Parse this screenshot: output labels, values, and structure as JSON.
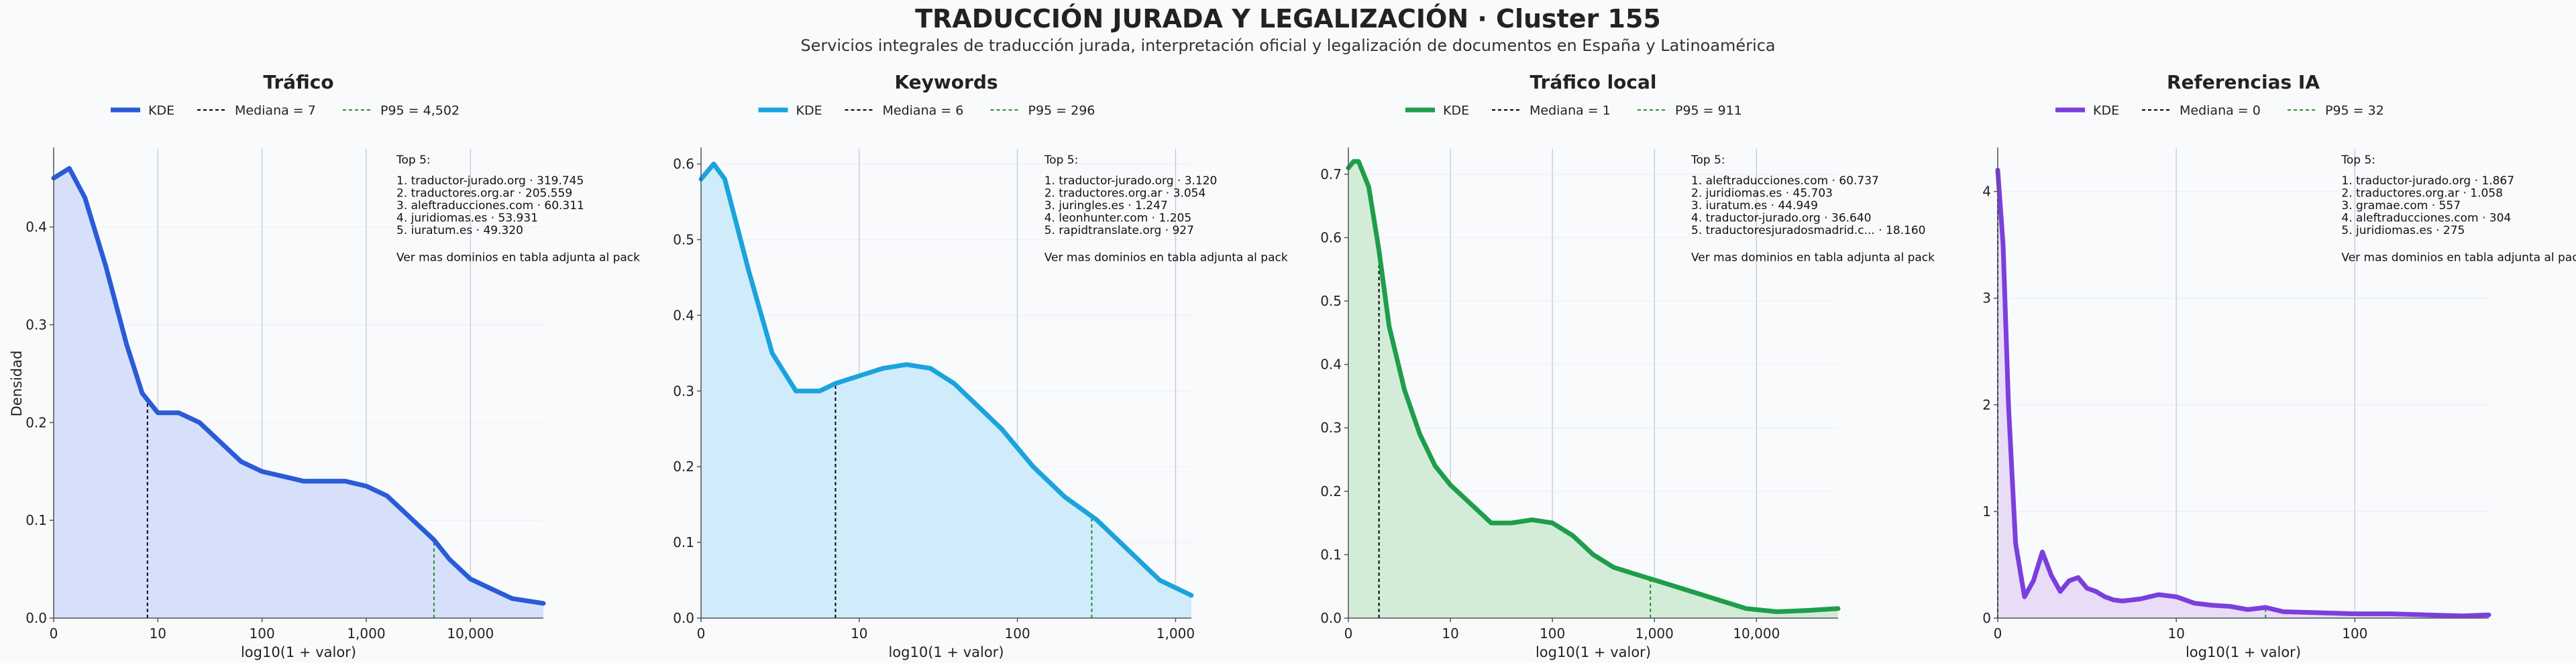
{
  "header": {
    "title": "TRADUCCIÓN JURADA Y LEGALIZACIÓN · Cluster 155",
    "subtitle": "Servicios integrales de traducción jurada, interpretación oficial y legalización de documentos en España y Latinoamérica"
  },
  "ylabel_shared": "Densidad",
  "chart_data": [
    {
      "type": "area",
      "title": "Tráfico",
      "xlabel": "log10(1 + valor)",
      "ylabel": "Densidad",
      "color": "#2a5bd7",
      "fill": "#d6e0fa",
      "median_color": "#000000",
      "p95_color": "#2e8b2e",
      "legend": [
        "KDE",
        "Mediana = 7",
        "P95 = 4,502"
      ],
      "xlim": [
        0,
        4.7
      ],
      "ylim": [
        0,
        0.48
      ],
      "xticks": [
        {
          "v": 0,
          "label": "0"
        },
        {
          "v": 1,
          "label": "10"
        },
        {
          "v": 2,
          "label": "100"
        },
        {
          "v": 3,
          "label": "1,000"
        },
        {
          "v": 4,
          "label": "10,000"
        }
      ],
      "yticks": [
        {
          "v": 0,
          "label": "0.0"
        },
        {
          "v": 0.1,
          "label": "0.1"
        },
        {
          "v": 0.2,
          "label": "0.2"
        },
        {
          "v": 0.3,
          "label": "0.3"
        },
        {
          "v": 0.4,
          "label": "0.4"
        }
      ],
      "median": 0.9,
      "p95": 3.65,
      "x": [
        0,
        0.15,
        0.3,
        0.5,
        0.7,
        0.85,
        1.0,
        1.2,
        1.4,
        1.6,
        1.8,
        2.0,
        2.2,
        2.4,
        2.6,
        2.8,
        3.0,
        3.2,
        3.35,
        3.5,
        3.65,
        3.8,
        4.0,
        4.2,
        4.4,
        4.7
      ],
      "y": [
        0.45,
        0.46,
        0.43,
        0.36,
        0.28,
        0.23,
        0.21,
        0.21,
        0.2,
        0.18,
        0.16,
        0.15,
        0.145,
        0.14,
        0.14,
        0.14,
        0.135,
        0.125,
        0.11,
        0.095,
        0.08,
        0.06,
        0.04,
        0.03,
        0.02,
        0.015
      ],
      "top5_header": "Top 5:",
      "top5": [
        "1. traductor-jurado.org · 319.745",
        "2. traductores.org.ar · 205.559",
        "3. aleftraducciones.com · 60.311",
        "4. juridiomas.es · 53.931",
        "5. iuratum.es · 49.320"
      ],
      "top5_footer": "Ver mas dominios en tabla adjunta al pack"
    },
    {
      "type": "area",
      "title": "Keywords",
      "xlabel": "log10(1 + valor)",
      "ylabel": "",
      "color": "#1aa3dd",
      "fill": "#d0ecfb",
      "median_color": "#000000",
      "p95_color": "#2e8b2e",
      "legend": [
        "KDE",
        "Mediana = 6",
        "P95 = 296"
      ],
      "xlim": [
        0,
        3.1
      ],
      "ylim": [
        0,
        0.62
      ],
      "xticks": [
        {
          "v": 0,
          "label": "0"
        },
        {
          "v": 1,
          "label": "10"
        },
        {
          "v": 2,
          "label": "100"
        },
        {
          "v": 3,
          "label": "1,000"
        }
      ],
      "yticks": [
        {
          "v": 0,
          "label": "0.0"
        },
        {
          "v": 0.1,
          "label": "0.1"
        },
        {
          "v": 0.2,
          "label": "0.2"
        },
        {
          "v": 0.3,
          "label": "0.3"
        },
        {
          "v": 0.4,
          "label": "0.4"
        },
        {
          "v": 0.5,
          "label": "0.5"
        },
        {
          "v": 0.6,
          "label": "0.6"
        }
      ],
      "median": 0.85,
      "p95": 2.47,
      "x": [
        0,
        0.08,
        0.15,
        0.3,
        0.45,
        0.6,
        0.75,
        0.85,
        1.0,
        1.15,
        1.3,
        1.45,
        1.6,
        1.75,
        1.9,
        2.1,
        2.3,
        2.5,
        2.7,
        2.9,
        3.1
      ],
      "y": [
        0.58,
        0.6,
        0.58,
        0.46,
        0.35,
        0.3,
        0.3,
        0.31,
        0.32,
        0.33,
        0.335,
        0.33,
        0.31,
        0.28,
        0.25,
        0.2,
        0.16,
        0.13,
        0.09,
        0.05,
        0.03
      ],
      "top5_header": "Top 5:",
      "top5": [
        "1. traductor-jurado.org · 3.120",
        "2. traductores.org.ar · 3.054",
        "3. juringles.es · 1.247",
        "4. leonhunter.com · 1.205",
        "5. rapidtranslate.org · 927"
      ],
      "top5_footer": "Ver mas dominios en tabla adjunta al pack"
    },
    {
      "type": "area",
      "title": "Tráfico local",
      "xlabel": "log10(1 + valor)",
      "ylabel": "",
      "color": "#1e9e4a",
      "fill": "#d3ecd8",
      "median_color": "#000000",
      "p95_color": "#2e8b2e",
      "legend": [
        "KDE",
        "Mediana = 1",
        "P95 = 911"
      ],
      "xlim": [
        0,
        4.8
      ],
      "ylim": [
        0,
        0.74
      ],
      "xticks": [
        {
          "v": 0,
          "label": "0"
        },
        {
          "v": 1,
          "label": "10"
        },
        {
          "v": 2,
          "label": "100"
        },
        {
          "v": 3,
          "label": "1,000"
        },
        {
          "v": 4,
          "label": "10,000"
        }
      ],
      "yticks": [
        {
          "v": 0,
          "label": "0.0"
        },
        {
          "v": 0.1,
          "label": "0.1"
        },
        {
          "v": 0.2,
          "label": "0.2"
        },
        {
          "v": 0.3,
          "label": "0.3"
        },
        {
          "v": 0.4,
          "label": "0.4"
        },
        {
          "v": 0.5,
          "label": "0.5"
        },
        {
          "v": 0.6,
          "label": "0.6"
        },
        {
          "v": 0.7,
          "label": "0.7"
        }
      ],
      "median": 0.3,
      "p95": 2.96,
      "x": [
        0,
        0.05,
        0.1,
        0.2,
        0.3,
        0.4,
        0.55,
        0.7,
        0.85,
        1.0,
        1.2,
        1.4,
        1.6,
        1.8,
        2.0,
        2.2,
        2.4,
        2.6,
        2.8,
        3.0,
        3.3,
        3.6,
        3.9,
        4.2,
        4.5,
        4.8
      ],
      "y": [
        0.71,
        0.72,
        0.72,
        0.68,
        0.58,
        0.46,
        0.36,
        0.29,
        0.24,
        0.21,
        0.18,
        0.15,
        0.15,
        0.155,
        0.15,
        0.13,
        0.1,
        0.08,
        0.07,
        0.06,
        0.045,
        0.03,
        0.015,
        0.01,
        0.012,
        0.015
      ],
      "top5_header": "Top 5:",
      "top5": [
        "1. aleftraducciones.com · 60.737",
        "2. juridiomas.es · 45.703",
        "3. iuratum.es · 44.949",
        "4. traductor-jurado.org · 36.640",
        "5. traductoresjuradosmadrid.c... · 18.160"
      ],
      "top5_footer": "Ver mas dominios en tabla adjunta al pack"
    },
    {
      "type": "area",
      "title": "Referencias IA",
      "xlabel": "log10(1 + valor)",
      "ylabel": "",
      "color": "#7b3fdc",
      "fill": "#e9dcf7",
      "median_color": "#000000",
      "p95_color": "#2e8b2e",
      "legend": [
        "KDE",
        "Mediana = 0",
        "P95 = 32"
      ],
      "xlim": [
        0,
        2.75
      ],
      "ylim": [
        0,
        4.4
      ],
      "xticks": [
        {
          "v": 0,
          "label": "0"
        },
        {
          "v": 1,
          "label": "10"
        },
        {
          "v": 2,
          "label": "100"
        }
      ],
      "yticks": [
        {
          "v": 0,
          "label": "0"
        },
        {
          "v": 1,
          "label": "1"
        },
        {
          "v": 2,
          "label": "2"
        },
        {
          "v": 3,
          "label": "3"
        },
        {
          "v": 4,
          "label": "4"
        }
      ],
      "median": 0,
      "p95": 1.5,
      "x": [
        0,
        0.03,
        0.06,
        0.1,
        0.15,
        0.2,
        0.25,
        0.3,
        0.35,
        0.4,
        0.45,
        0.5,
        0.55,
        0.6,
        0.65,
        0.7,
        0.8,
        0.9,
        1.0,
        1.1,
        1.2,
        1.3,
        1.4,
        1.5,
        1.6,
        1.8,
        2.0,
        2.2,
        2.4,
        2.6,
        2.75
      ],
      "y": [
        4.2,
        3.5,
        2.0,
        0.7,
        0.2,
        0.35,
        0.62,
        0.4,
        0.25,
        0.35,
        0.38,
        0.28,
        0.25,
        0.2,
        0.17,
        0.16,
        0.18,
        0.22,
        0.2,
        0.14,
        0.12,
        0.11,
        0.08,
        0.1,
        0.06,
        0.05,
        0.04,
        0.04,
        0.03,
        0.02,
        0.03
      ],
      "top5_header": "Top 5:",
      "top5": [
        "1. traductor-jurado.org · 1.867",
        "2. traductores.org.ar · 1.058",
        "3. gramae.com · 557",
        "4. aleftraducciones.com · 304",
        "5. juridiomas.es · 275"
      ],
      "top5_footer": "Ver mas dominios en tabla adjunta al pack"
    }
  ]
}
